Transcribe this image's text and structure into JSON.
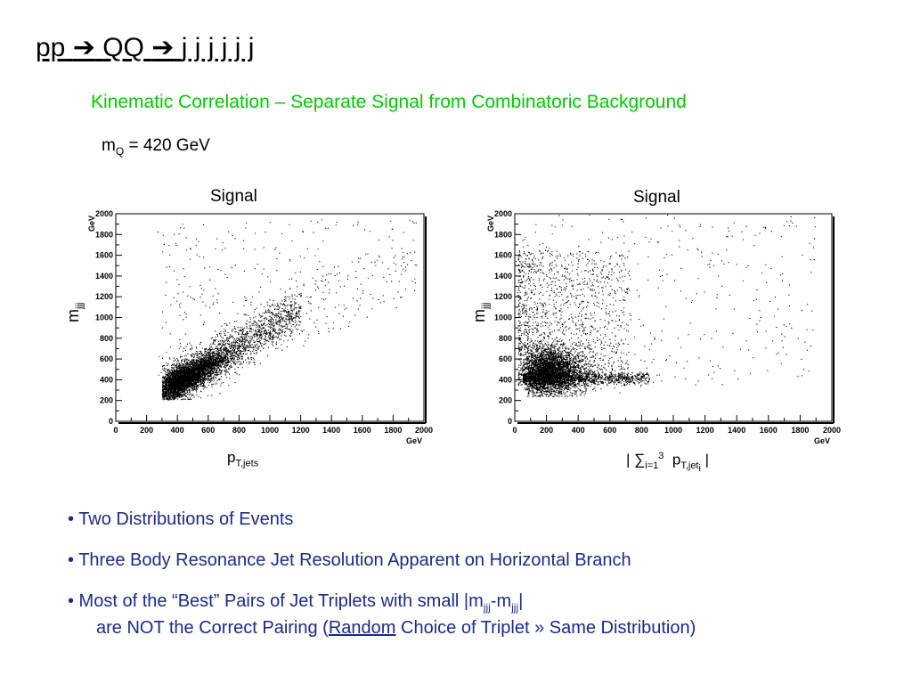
{
  "title": {
    "pp": "pp",
    "arrow": "➔",
    "qq": "QQ",
    "jets": "j j j j j j"
  },
  "subtitle": "Kinematic Correlation – Separate Signal from Combinatoric Background",
  "mass": {
    "m": "m",
    "sub": "Q",
    "rest": " = 420 GeV"
  },
  "colors": {
    "subtitle": "#00cc00",
    "bullets": "#1a2a8a",
    "points": "#000000"
  },
  "chart_data": [
    {
      "type": "scatter",
      "title": "Signal",
      "xlabel": {
        "main": "p",
        "sub": "T,jets"
      },
      "ylabel": {
        "main": "m",
        "sub": "jjj"
      },
      "x_unit": "GeV",
      "y_unit": "GeV",
      "xlim": [
        0,
        2000
      ],
      "ylim": [
        0,
        2000
      ],
      "xticks": [
        0,
        200,
        400,
        600,
        800,
        1000,
        1200,
        1400,
        1600,
        1800,
        2000
      ],
      "yticks": [
        0,
        200,
        400,
        600,
        800,
        1000,
        1200,
        1400,
        1600,
        1800,
        2000
      ],
      "distribution": {
        "description": "dense band correlated along diagonal; core near (400, 350), extends to (1000, 1000)",
        "core_x": 450,
        "core_y": 420,
        "points": 6500
      }
    },
    {
      "type": "scatter",
      "title": "Signal",
      "xlabel": {
        "main": "| ∑",
        "sub": "i=1",
        "sup": "3",
        "p": "p",
        "psub": "T,jet",
        "psubsub": "i",
        "end": " |"
      },
      "ylabel": {
        "main": "m",
        "sub": "jjj"
      },
      "x_unit": "GeV",
      "y_unit": "GeV",
      "xlim": [
        0,
        2000
      ],
      "ylim": [
        0,
        2000
      ],
      "xticks": [
        0,
        200,
        400,
        600,
        800,
        1000,
        1200,
        1400,
        1600,
        1800,
        2000
      ],
      "yticks": [
        0,
        200,
        400,
        600,
        800,
        1000,
        1200,
        1400,
        1600,
        1800,
        2000
      ],
      "distribution": {
        "description": "dense blob near (200, 450) with horizontal branch at m≈420 GeV",
        "core_x": 200,
        "core_y": 470,
        "branch_y": 420,
        "points": 6500
      }
    }
  ],
  "bullets": [
    {
      "text": "• Two Distributions of Events"
    },
    {
      "text": "• Three Body Resonance Jet Resolution Apparent on Horizontal Branch"
    },
    {
      "pre": "• Most of the “Best” Pairs of Jet Triplets with small |m",
      "sub1": "jjj",
      "mid": "-m",
      "sub2": "jjj",
      "post": "|"
    },
    {
      "pre": "are NOT the Correct Pairing   (",
      "u": "Random",
      "post": " Choice of Triplet » Same Distribution)"
    }
  ]
}
